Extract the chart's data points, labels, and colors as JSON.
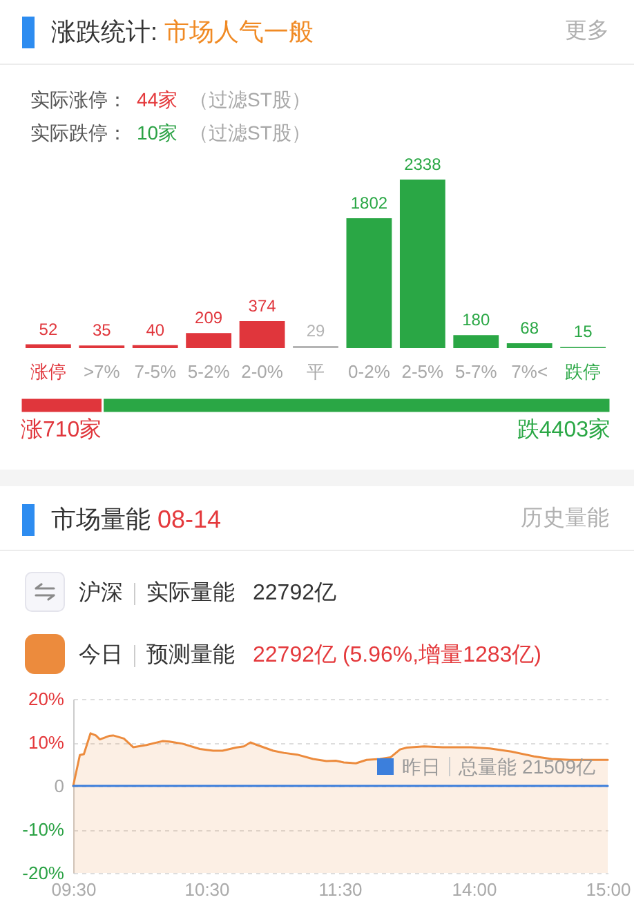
{
  "chart_data": [
    {
      "type": "bar",
      "title": "涨跌统计:",
      "subtitle": "市场人气一般",
      "categories": [
        "涨停",
        ">7%",
        "7-5%",
        "5-2%",
        "2-0%",
        "平",
        "0-2%",
        "2-5%",
        "5-7%",
        "7%<",
        "跌停"
      ],
      "values": [
        52,
        35,
        40,
        209,
        374,
        29,
        1802,
        2338,
        180,
        68,
        15
      ],
      "colors": [
        "#e0363c",
        "#e0363c",
        "#e0363c",
        "#e0363c",
        "#e0363c",
        "#b4b4b4",
        "#2aa745",
        "#2aa745",
        "#2aa745",
        "#2aa745",
        "#2aa745"
      ],
      "data_labels": true,
      "tick_labels": "x",
      "annotations": [
        "更多",
        "实际涨停：",
        "44家",
        "（过滤ST股）",
        "实际跌停：",
        "10家",
        "（过滤ST股）"
      ]
    },
    {
      "type": "bar",
      "orientation": "horizontal",
      "stacked": true,
      "categories": [
        null
      ],
      "series": [
        {
          "color": "#e0363c",
          "values": [
            710
          ],
          "value_labels": [
            "涨710家"
          ]
        },
        {
          "color": "#2aa745",
          "values": [
            4403
          ],
          "value_labels": [
            "跌4403家"
          ]
        }
      ],
      "tick_labels": false
    },
    {
      "type": "line",
      "title": "市场量能",
      "subtitle": "08-14",
      "series": [
        {
          "name": "今日",
          "type": "area",
          "color": "#ec8b3d",
          "x": [
            9.5,
            9.55,
            9.58,
            9.63,
            9.67,
            9.7,
            9.77,
            9.8,
            9.88,
            9.95,
            10.05,
            10.17,
            10.22,
            10.32,
            10.45,
            10.55,
            10.62,
            10.72,
            10.78,
            10.83,
            10.88,
            11.0,
            11.08,
            11.18,
            11.3,
            11.4,
            11.47,
            11.5
          ],
          "values": [
            0,
            7.1,
            7.3,
            12.1,
            11.6,
            10.7,
            11.5,
            11.6,
            10.9,
            8.9,
            9.4,
            10.3,
            10.2,
            9.7,
            8.5,
            8.1,
            8.1,
            8.8,
            9.1,
            10.0,
            9.4,
            8.1,
            7.6,
            7.2,
            6.2,
            5.7,
            5.8,
            5.6
          ]
        },
        {
          "type": "line",
          "color": "#3c7fdc",
          "x": [
            9.5,
            11.5
          ],
          "values": [
            0,
            0
          ]
        }
      ],
      "bands": [
        {
          "axis": "y",
          "from": -20,
          "to": 0,
          "color": "#ec8b3d"
        }
      ],
      "xlim": [
        9.5,
        11.5
      ],
      "xticks": [
        {
          "value": 9.5,
          "label": "09:30"
        },
        {
          "value": 10.5,
          "label": "10:30"
        },
        {
          "value": 11.5,
          "label": "11:30"
        }
      ],
      "ylim": [
        -20,
        20
      ],
      "yticks": [
        {
          "value": -20,
          "label": "-20%"
        },
        {
          "value": -10,
          "label": "-10%"
        },
        0,
        {
          "value": 10,
          "label": "10%"
        },
        {
          "value": 20,
          "label": "20%"
        }
      ],
      "grid": "y",
      "legend": "top left",
      "annotations": [
        "历史量能",
        "沪深",
        "实际量能",
        "22792亿",
        "预测量能",
        "22792亿 (5.96%,增量1283亿)"
      ]
    },
    {
      "type": "line",
      "series": [
        {
          "type": "area",
          "color": "#ec8b3d",
          "x": [
            13.0,
            13.03,
            13.12,
            13.2,
            13.3,
            13.38,
            13.45,
            13.5,
            13.63,
            13.77,
            13.98,
            14.12,
            14.28,
            14.45,
            14.58,
            14.72,
            14.85,
            15.0
          ],
          "values": [
            5.6,
            5.4,
            5.2,
            6.0,
            6.2,
            6.6,
            8.4,
            8.8,
            9.1,
            8.9,
            8.9,
            8.6,
            7.9,
            6.8,
            6.2,
            6.0,
            6.0,
            6.0
          ]
        },
        {
          "name": "昨日",
          "type": "line",
          "color": "#3c7fdc",
          "x": [
            13,
            15
          ],
          "values": [
            0,
            0
          ]
        }
      ],
      "bands": [
        {
          "axis": "y",
          "from": -20,
          "to": 0,
          "color": "#ec8b3d"
        }
      ],
      "xlim": [
        13,
        15
      ],
      "xticks": [
        {
          "value": 14,
          "label": "14:00"
        },
        {
          "value": 15,
          "label": "15:00"
        }
      ],
      "ylim": [
        -20,
        20
      ],
      "yticks": [
        -20,
        -10,
        0,
        10,
        20
      ],
      "tick_labels": "x",
      "grid": "y",
      "legend": "top left",
      "annotations": [
        "总量能 21509亿"
      ]
    }
  ]
}
